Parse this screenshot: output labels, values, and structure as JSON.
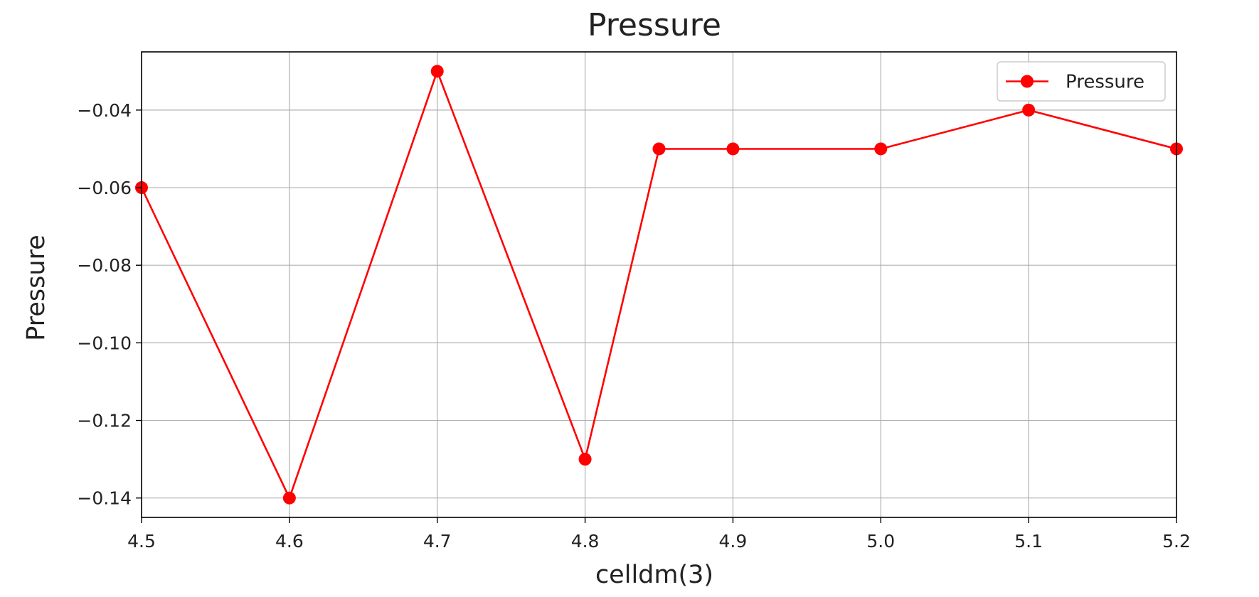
{
  "chart_data": {
    "type": "line",
    "title": "Pressure",
    "xlabel": "celldm(3)",
    "ylabel": "Pressure",
    "xlim": [
      4.5,
      5.2
    ],
    "ylim": [
      -0.145,
      -0.025
    ],
    "x_ticks": [
      "4.5",
      "4.6",
      "4.7",
      "4.8",
      "4.9",
      "5.0",
      "5.1",
      "5.2"
    ],
    "y_ticks": [
      "−0.04",
      "−0.06",
      "−0.08",
      "−0.10",
      "−0.12",
      "−0.14"
    ],
    "grid": true,
    "legend_position": "top-right",
    "series": [
      {
        "name": "Pressure",
        "color": "#ff0000",
        "marker": "circle",
        "x": [
          4.5,
          4.6,
          4.7,
          4.8,
          4.85,
          4.9,
          5.0,
          5.1,
          5.2
        ],
        "y": [
          -0.06,
          -0.14,
          -0.03,
          -0.13,
          -0.05,
          -0.05,
          -0.05,
          -0.04,
          -0.05
        ]
      }
    ]
  }
}
